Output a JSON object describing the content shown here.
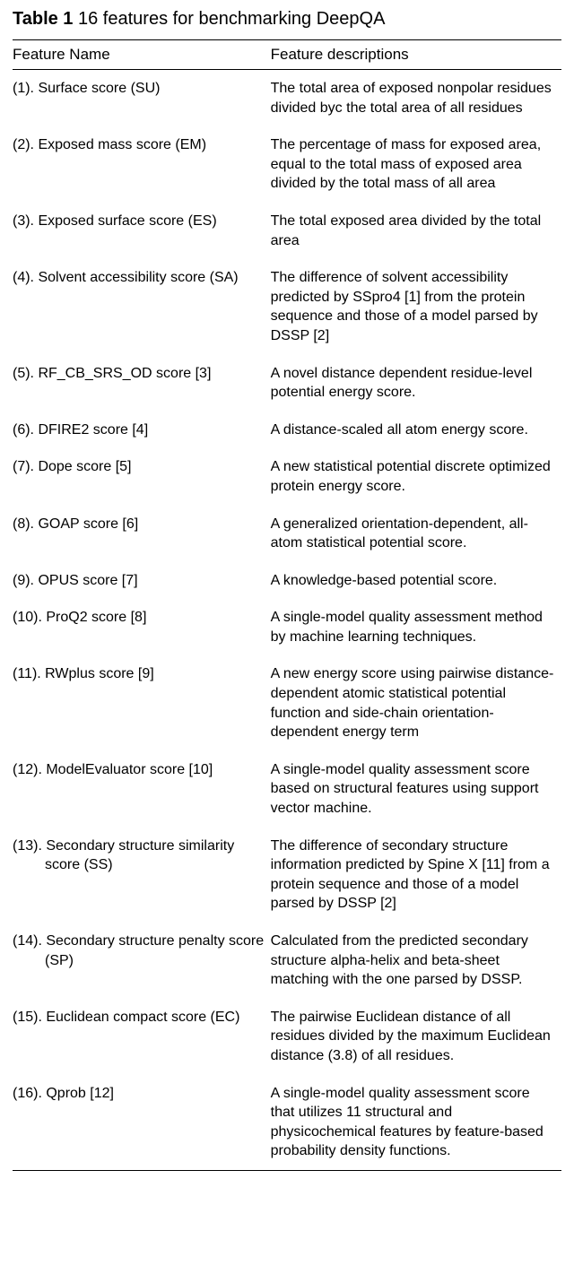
{
  "title_prefix": "Table 1",
  "title_rest": " 16 features for benchmarking DeepQA",
  "columns": {
    "name": "Feature Name",
    "desc": "Feature descriptions"
  },
  "rows": [
    {
      "name": "(1). Surface score (SU)",
      "desc": "The total area of exposed nonpolar residues divided byc the total area of all residues"
    },
    {
      "name": "(2). Exposed mass score (EM)",
      "desc": "The percentage of mass for exposed area, equal to the total mass of exposed area divided by the total mass of all area"
    },
    {
      "name": "(3). Exposed surface score (ES)",
      "desc": "The total exposed area divided by the total area"
    },
    {
      "name": "(4). Solvent accessibility score (SA)",
      "desc": "The difference of solvent accessibility predicted by SSpro4 [1] from the protein sequence and those of a model parsed by DSSP [2]"
    },
    {
      "name": "(5). RF_CB_SRS_OD score [3]",
      "desc": "A novel distance dependent residue-level potential energy score."
    },
    {
      "name": "(6). DFIRE2 score [4]",
      "desc": "A distance-scaled all atom energy score."
    },
    {
      "name": "(7). Dope score [5]",
      "desc": "A new statistical potential discrete optimized protein energy score."
    },
    {
      "name": "(8). GOAP score [6]",
      "desc": "A generalized orientation-dependent, all-atom statistical potential score."
    },
    {
      "name": "(9). OPUS score [7]",
      "desc": "A knowledge-based potential score."
    },
    {
      "name": "(10). ProQ2 score [8]",
      "desc": "A single-model quality assessment method by machine learning techniques."
    },
    {
      "name": "(11). RWplus score [9]",
      "desc": "A new energy score using pairwise distance-dependent atomic statistical potential function and side-chain orientation-dependent energy term"
    },
    {
      "name": "(12). ModelEvaluator score [10]",
      "desc": "A single-model quality assessment score based on structural features using support vector machine."
    },
    {
      "name": "(13). Secondary structure similarity score (SS)",
      "desc": "The difference of secondary structure information predicted by Spine X [11] from a protein sequence and those of a model parsed by DSSP [2]"
    },
    {
      "name": "(14). Secondary structure penalty score (SP)",
      "desc": "Calculated from the predicted secondary structure alpha-helix and beta-sheet matching with the one parsed by DSSP."
    },
    {
      "name": "(15). Euclidean compact score (EC)",
      "desc": "The pairwise Euclidean distance of all residues divided by the maximum Euclidean distance (3.8) of all residues."
    },
    {
      "name": "(16). Qprob [12]",
      "desc": "A single-model quality assessment score that utilizes 11 structural and physicochemical features by feature-based probability density functions."
    }
  ]
}
